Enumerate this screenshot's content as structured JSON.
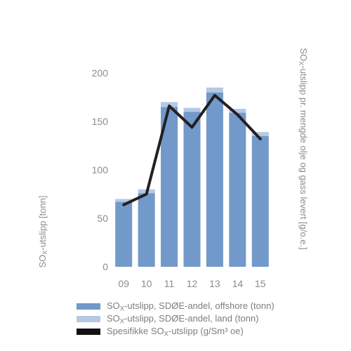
{
  "chart_data": {
    "type": "bar",
    "categories": [
      "09",
      "10",
      "11",
      "12",
      "13",
      "14",
      "15"
    ],
    "series": [
      {
        "name": "SOX-utslipp, SDØE-andel, offshore (tonn)",
        "values": [
          67,
          76,
          165,
          160,
          180,
          159,
          135
        ],
        "color": "#7199c9",
        "stacked": true
      },
      {
        "name": "SOX-utslipp, SDØE-andel, land (tonn)",
        "values": [
          3,
          4,
          5,
          4,
          5,
          4,
          4
        ],
        "color": "#b3c9e4",
        "stacked": true
      },
      {
        "name": "Spesifikke SOX-utslipp (g/Sm³ oe)",
        "type": "line",
        "values": [
          64,
          75,
          166,
          144,
          177,
          157,
          132
        ],
        "color": "#231f20"
      }
    ],
    "ylim": [
      0,
      200
    ],
    "yticks": [
      "0",
      "50",
      "100",
      "150",
      "200"
    ],
    "ylabel_left": "SOX-utslipp [tonn]",
    "ylabel_right": "SOX-utslipp pr. mengde olje og gass levert [g/o.e.]",
    "grid": false,
    "legend_position": "bottom"
  },
  "legend": [
    {
      "label": "SOX-utslipp, SDØE-andel, offshore (tonn)",
      "color": "#7199c9"
    },
    {
      "label": "SOX-utslipp, SDØE-andel, land (tonn)",
      "color": "#b3c9e4"
    },
    {
      "label": "Spesifikke SOX-utslipp (g/Sm³ oe)",
      "color": "#111111"
    }
  ]
}
